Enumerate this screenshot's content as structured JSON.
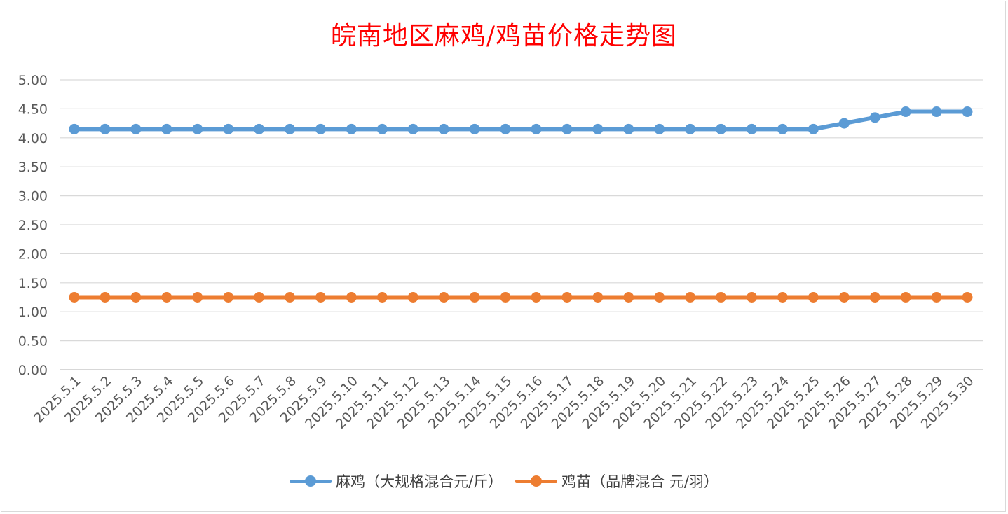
{
  "chart_data": {
    "type": "line",
    "title": "皖南地区麻鸡/鸡苗价格走势图",
    "categories": [
      "2025.5.1",
      "2025.5.2",
      "2025.5.3",
      "2025.5.4",
      "2025.5.5",
      "2025.5.6",
      "2025.5.7",
      "2025.5.8",
      "2025.5.9",
      "2025.5.10",
      "2025.5.11",
      "2025.5.12",
      "2025.5.13",
      "2025.5.14",
      "2025.5.15",
      "2025.5.16",
      "2025.5.17",
      "2025.5.18",
      "2025.5.19",
      "2025.5.20",
      "2025.5.21",
      "2025.5.22",
      "2025.5.23",
      "2025.5.24",
      "2025.5.25",
      "2025.5.26",
      "2025.5.27",
      "2025.5.28",
      "2025.5.29",
      "2025.5.30"
    ],
    "yticks": [
      "0.00",
      "0.50",
      "1.00",
      "1.50",
      "2.00",
      "2.50",
      "3.00",
      "3.50",
      "4.00",
      "4.50",
      "5.00"
    ],
    "ylim": [
      0,
      5
    ],
    "grid": true,
    "legend_position": "bottom",
    "series": [
      {
        "name": "麻鸡（大规格混合元/斤）",
        "color": "#5b9bd5",
        "values": [
          4.15,
          4.15,
          4.15,
          4.15,
          4.15,
          4.15,
          4.15,
          4.15,
          4.15,
          4.15,
          4.15,
          4.15,
          4.15,
          4.15,
          4.15,
          4.15,
          4.15,
          4.15,
          4.15,
          4.15,
          4.15,
          4.15,
          4.15,
          4.15,
          4.15,
          4.25,
          4.35,
          4.45,
          4.45,
          4.45
        ]
      },
      {
        "name": "鸡苗（品牌混合 元/羽）",
        "color": "#ed7d31",
        "values": [
          1.25,
          1.25,
          1.25,
          1.25,
          1.25,
          1.25,
          1.25,
          1.25,
          1.25,
          1.25,
          1.25,
          1.25,
          1.25,
          1.25,
          1.25,
          1.25,
          1.25,
          1.25,
          1.25,
          1.25,
          1.25,
          1.25,
          1.25,
          1.25,
          1.25,
          1.25,
          1.25,
          1.25,
          1.25,
          1.25
        ]
      }
    ]
  }
}
